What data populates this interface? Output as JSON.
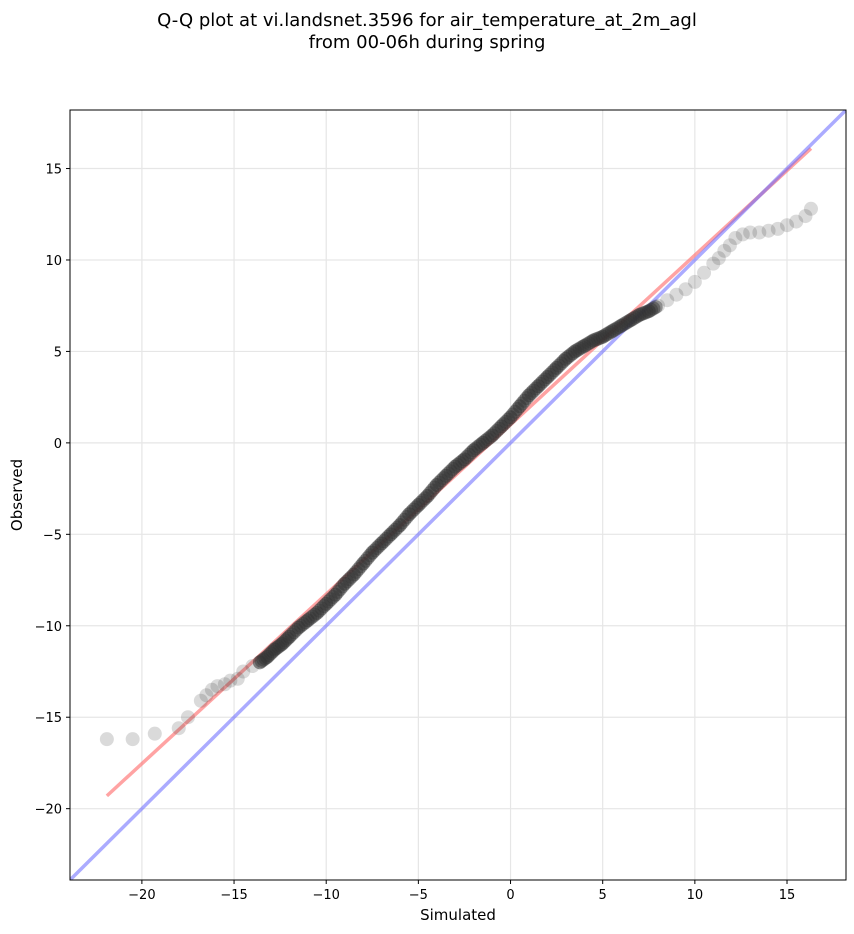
{
  "title_line1": "Q-Q plot at vi.landsnet.3596 for air_temperature_at_2m_agl",
  "title_line2": "from 00-06h during spring",
  "chart_data": {
    "type": "scatter",
    "xlabel": "Simulated",
    "ylabel": "Observed",
    "xlim": [
      -23.9,
      18.2
    ],
    "ylim": [
      -23.9,
      18.2
    ],
    "xticks": [
      -20,
      -15,
      -10,
      -5,
      0,
      5,
      10,
      15
    ],
    "yticks": [
      -20,
      -15,
      -10,
      -5,
      0,
      5,
      10,
      15
    ],
    "grid": true,
    "colors": {
      "points": "#333333",
      "fit_line": "#ff6666",
      "one_to_one_line": "#6666ff",
      "grid": "#e6e6e6",
      "axes": "#000000"
    },
    "series": [
      {
        "type": "scatter",
        "x": [
          -21.9,
          -20.5,
          -19.3,
          -18.0,
          -17.5,
          -16.8,
          -16.5,
          -16.2,
          -15.9,
          -15.5,
          -15.2,
          -14.8,
          -14.5,
          -14.0,
          -13.6,
          -13.2,
          -12.8,
          -12.4,
          -12.0,
          -11.5,
          -11.0,
          -10.5,
          -10.0,
          -9.5,
          -9.0,
          -8.5,
          -8.0,
          -7.5,
          -7.0,
          -6.5,
          -6.0,
          -5.5,
          -5.0,
          -4.5,
          -4.0,
          -3.5,
          -3.0,
          -2.5,
          -2.0,
          -1.5,
          -1.0,
          -0.5,
          0.0,
          0.5,
          1.0,
          1.5,
          2.0,
          2.5,
          3.0,
          3.5,
          4.0,
          4.5,
          5.0,
          5.5,
          6.0,
          6.5,
          7.0,
          7.5,
          8.0,
          8.5,
          9.0,
          9.5,
          10.0,
          10.5,
          11.0,
          11.3,
          11.6,
          11.9,
          12.2,
          12.6,
          13.0,
          13.5,
          14.0,
          14.5,
          15.0,
          15.5,
          16.0,
          16.3
        ],
        "y": [
          -16.2,
          -16.2,
          -15.9,
          -15.6,
          -15.0,
          -14.1,
          -13.8,
          -13.5,
          -13.3,
          -13.2,
          -13.0,
          -12.9,
          -12.5,
          -12.2,
          -12.0,
          -11.7,
          -11.3,
          -11.0,
          -10.6,
          -10.1,
          -9.7,
          -9.3,
          -8.8,
          -8.3,
          -7.7,
          -7.2,
          -6.6,
          -6.0,
          -5.5,
          -5.0,
          -4.5,
          -3.9,
          -3.4,
          -2.9,
          -2.3,
          -1.8,
          -1.3,
          -0.9,
          -0.4,
          0.0,
          0.4,
          0.9,
          1.4,
          2.0,
          2.6,
          3.1,
          3.6,
          4.1,
          4.6,
          5.0,
          5.3,
          5.6,
          5.8,
          6.1,
          6.4,
          6.7,
          7.0,
          7.2,
          7.5,
          7.8,
          8.1,
          8.4,
          8.8,
          9.3,
          9.8,
          10.1,
          10.5,
          10.8,
          11.2,
          11.4,
          11.5,
          11.5,
          11.6,
          11.7,
          11.9,
          12.1,
          12.4,
          12.8
        ]
      },
      {
        "type": "line",
        "role": "fit",
        "x": [
          -21.9,
          16.3
        ],
        "y": [
          -19.3,
          16.1
        ]
      },
      {
        "type": "line",
        "role": "one-to-one",
        "x": [
          -23.9,
          18.2
        ],
        "y": [
          -23.9,
          18.2
        ]
      }
    ]
  }
}
